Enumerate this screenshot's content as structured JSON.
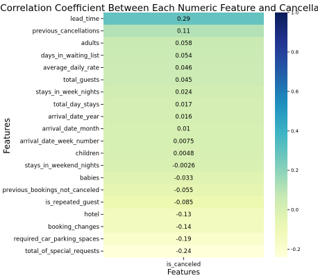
{
  "chart_data": {
    "type": "heatmap",
    "title": "Correlation Coefficient Between Each Numeric Feature and Cancellation",
    "xlabel": "Features",
    "ylabel": "Features",
    "column": "is_canceled",
    "colormap": "YlGnBu",
    "colorbar": {
      "vmin": -0.24,
      "vmax": 1.0,
      "ticks": [
        "-0.2",
        "0.0",
        "0.2",
        "0.4",
        "0.6",
        "0.8",
        "1.0"
      ]
    },
    "rows": [
      {
        "feature": "lead_time",
        "value": 0.29,
        "label": "0.29"
      },
      {
        "feature": "previous_cancellations",
        "value": 0.11,
        "label": "0.11"
      },
      {
        "feature": "adults",
        "value": 0.058,
        "label": "0.058"
      },
      {
        "feature": "days_in_waiting_list",
        "value": 0.054,
        "label": "0.054"
      },
      {
        "feature": "average_daily_rate",
        "value": 0.046,
        "label": "0.046"
      },
      {
        "feature": "total_guests",
        "value": 0.045,
        "label": "0.045"
      },
      {
        "feature": "stays_in_week_nights",
        "value": 0.024,
        "label": "0.024"
      },
      {
        "feature": "total_day_stays",
        "value": 0.017,
        "label": "0.017"
      },
      {
        "feature": "arrival_date_year",
        "value": 0.016,
        "label": "0.016"
      },
      {
        "feature": "arrival_date_month",
        "value": 0.01,
        "label": "0.01"
      },
      {
        "feature": "arrival_date_week_number",
        "value": 0.0075,
        "label": "0.0075"
      },
      {
        "feature": "children",
        "value": 0.0048,
        "label": "0.0048"
      },
      {
        "feature": "stays_in_weekend_nights",
        "value": -0.0026,
        "label": "-0.0026"
      },
      {
        "feature": "babies",
        "value": -0.033,
        "label": "-0.033"
      },
      {
        "feature": "previous_bookings_not_canceled",
        "value": -0.055,
        "label": "-0.055"
      },
      {
        "feature": "is_repeated_guest",
        "value": -0.085,
        "label": "-0.085"
      },
      {
        "feature": "hotel",
        "value": -0.13,
        "label": "-0.13"
      },
      {
        "feature": "booking_changes",
        "value": -0.14,
        "label": "-0.14"
      },
      {
        "feature": "required_car_parking_spaces",
        "value": -0.19,
        "label": "-0.19"
      },
      {
        "feature": "total_of_special_requests",
        "value": -0.24,
        "label": "-0.24"
      }
    ]
  }
}
